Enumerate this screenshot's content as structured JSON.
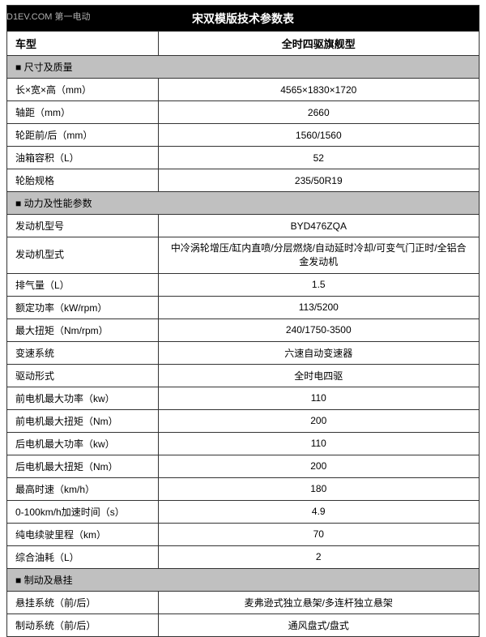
{
  "watermark": "D1EV.COM 第一电动",
  "title": "宋双模版技术参数表",
  "header": {
    "model_label": "车型",
    "model_value": "全时四驱旗舰型"
  },
  "sections": [
    {
      "name": "■ 尺寸及质量",
      "rows": [
        {
          "label": "长×宽×高（mm）",
          "value": "4565×1830×1720"
        },
        {
          "label": "轴距（mm）",
          "value": "2660"
        },
        {
          "label": "轮距前/后（mm）",
          "value": "1560/1560"
        },
        {
          "label": "油箱容积（L）",
          "value": "52"
        },
        {
          "label": "轮胎规格",
          "value": "235/50R19"
        }
      ]
    },
    {
      "name": "■ 动力及性能参数",
      "rows": [
        {
          "label": "发动机型号",
          "value": "BYD476ZQA"
        },
        {
          "label": "发动机型式",
          "value": "中冷涡轮增压/缸内直喷/分层燃烧/自动延时冷却/可变气门正时/全铝合金发动机",
          "tall": true
        },
        {
          "label": "排气量（L）",
          "value": "1.5"
        },
        {
          "label": "额定功率（kW/rpm）",
          "value": "113/5200"
        },
        {
          "label": "最大扭矩（Nm/rpm）",
          "value": "240/1750-3500"
        },
        {
          "label": "变速系统",
          "value": "六速自动变速器"
        },
        {
          "label": "驱动形式",
          "value": "全时电四驱"
        },
        {
          "label": "前电机最大功率（kw）",
          "value": "110"
        },
        {
          "label": "前电机最大扭矩（Nm）",
          "value": "200"
        },
        {
          "label": "后电机最大功率（kw）",
          "value": "110"
        },
        {
          "label": "后电机最大扭矩（Nm）",
          "value": "200"
        },
        {
          "label": "最高时速（km/h）",
          "value": "180"
        },
        {
          "label": "0-100km/h加速时间（s）",
          "value": "4.9"
        },
        {
          "label": "纯电续驶里程（km）",
          "value": "70"
        },
        {
          "label": "综合油耗（L）",
          "value": "2"
        }
      ]
    },
    {
      "name": "■ 制动及悬挂",
      "rows": [
        {
          "label": "悬挂系统（前/后）",
          "value": "麦弗逊式独立悬架/多连杆独立悬架"
        },
        {
          "label": "制动系统（前/后）",
          "value": "通风盘式/盘式"
        }
      ]
    }
  ]
}
